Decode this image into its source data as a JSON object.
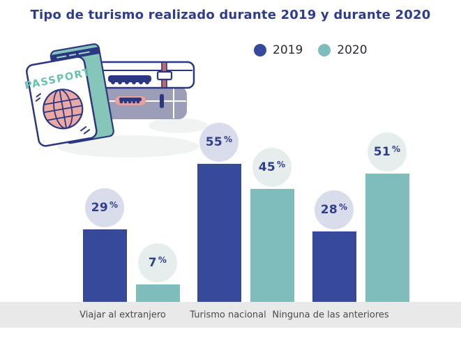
{
  "title": "Tipo de turismo realizado durante 2019 y durante 2020",
  "legend": [
    {
      "label": "2019",
      "color": "#36499B"
    },
    {
      "label": "2020",
      "color": "#7FBCBC"
    }
  ],
  "illustration": {
    "name": "passport-and-suitcases",
    "passport_text": "PASSPORT"
  },
  "chart_data": {
    "type": "bar",
    "title": "Tipo de turismo realizado durante 2019 y durante 2020",
    "categories": [
      "Viajar al extranjero",
      "Turismo nacional",
      "Ninguna de las anteriores"
    ],
    "series": [
      {
        "name": "2019",
        "color": "#36499B",
        "badge_color": "#D9DCEB",
        "values": [
          29,
          55,
          28
        ]
      },
      {
        "name": "2020",
        "color": "#7FBCBC",
        "badge_color": "#E5EEEC",
        "values": [
          7,
          45,
          51
        ]
      }
    ],
    "unit": "%",
    "value_label_format": "{value} %",
    "ylim": [
      0,
      60
    ],
    "grid": false,
    "legend_position": "top-center",
    "value_labels": "circle badges above bars",
    "xlabel": "",
    "ylabel": ""
  },
  "colors": {
    "title_text": "#2E3C8E",
    "bar_2019": "#36499B",
    "bar_2020": "#7FBCBC",
    "badge_2019_bg": "#D9DCEB",
    "badge_2020_bg": "#E5EEEC",
    "badge_text": "#2F3E8D",
    "axis_band_bg": "#E9E9E9",
    "axis_label_text": "#4A4A4A",
    "background": "#FFFFFF"
  }
}
